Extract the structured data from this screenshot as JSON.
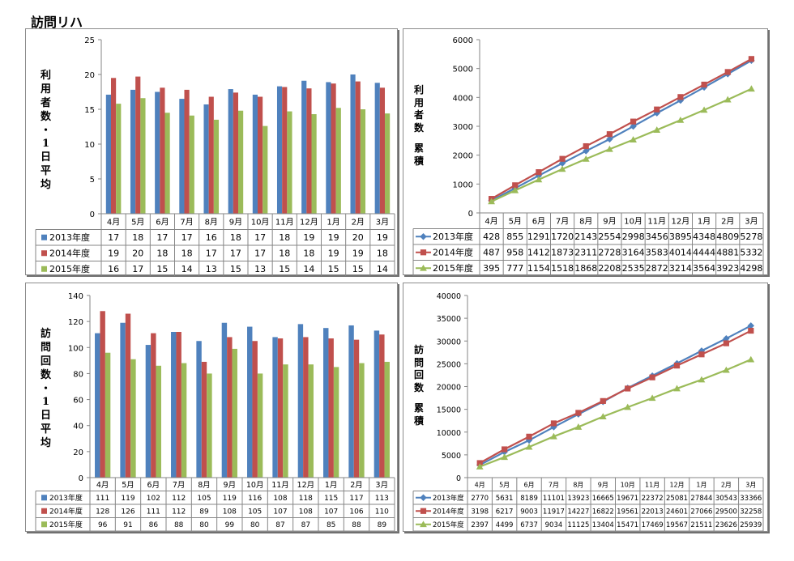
{
  "page_title": "訪問リハ",
  "colors": {
    "2013年度": "#4f81bd",
    "2014年度": "#c0504d",
    "2015年度": "#9bbb59"
  },
  "chart_data": [
    {
      "id": "users-daily",
      "type": "bar",
      "ylabel": "利用者数・1日平均",
      "ylim": [
        0,
        25
      ],
      "yticks": [
        0,
        5,
        10,
        15,
        20,
        25
      ],
      "grid": false,
      "legend": "data-table",
      "categories": [
        "4月",
        "5月",
        "6月",
        "7月",
        "8月",
        "9月",
        "10月",
        "11月",
        "12月",
        "1月",
        "2月",
        "3月"
      ],
      "series": [
        {
          "name": "2013年度",
          "values": [
            17.1,
            17.8,
            17.5,
            16.5,
            15.7,
            17.9,
            17.1,
            18.3,
            19.1,
            18.9,
            20.0,
            18.8
          ],
          "labels": [
            "17",
            "18",
            "17",
            "17",
            "16",
            "18",
            "17",
            "18",
            "19",
            "19",
            "20",
            "19"
          ]
        },
        {
          "name": "2014年度",
          "values": [
            19.5,
            19.7,
            18.1,
            17.8,
            16.8,
            17.4,
            16.8,
            18.2,
            18.0,
            18.7,
            19.0,
            18.1
          ],
          "labels": [
            "19",
            "20",
            "18",
            "18",
            "17",
            "17",
            "17",
            "18",
            "18",
            "19",
            "19",
            "18"
          ]
        },
        {
          "name": "2015年度",
          "values": [
            15.8,
            16.6,
            14.5,
            14.1,
            13.5,
            14.8,
            12.6,
            14.7,
            14.3,
            15.2,
            15.0,
            14.4
          ],
          "labels": [
            "16",
            "17",
            "15",
            "14",
            "13",
            "15",
            "13",
            "15",
            "14",
            "15",
            "15",
            "14"
          ]
        }
      ]
    },
    {
      "id": "users-cumulative",
      "type": "line",
      "ylabel": "利用者数 累積",
      "ylim": [
        0,
        6000
      ],
      "yticks": [
        0,
        1000,
        2000,
        3000,
        4000,
        5000,
        6000
      ],
      "grid": false,
      "legend": "data-table",
      "categories": [
        "4月",
        "5月",
        "6月",
        "7月",
        "8月",
        "9月",
        "10月",
        "11月",
        "12月",
        "1月",
        "2月",
        "3月"
      ],
      "series": [
        {
          "name": "2013年度",
          "values": [
            428,
            855,
            1291,
            1720,
            2143,
            2554,
            2998,
            3456,
            3895,
            4348,
            4809,
            5278
          ]
        },
        {
          "name": "2014年度",
          "values": [
            487,
            958,
            1412,
            1873,
            2311,
            2728,
            3164,
            3583,
            4014,
            4444,
            4881,
            5332
          ]
        },
        {
          "name": "2015年度",
          "values": [
            395,
            777,
            1154,
            1518,
            1868,
            2208,
            2535,
            2872,
            3214,
            3564,
            3923,
            4298
          ]
        }
      ]
    },
    {
      "id": "visits-daily",
      "type": "bar",
      "ylabel": "訪問回数・1日平均",
      "ylim": [
        0,
        140
      ],
      "yticks": [
        0,
        20,
        40,
        60,
        80,
        100,
        120,
        140
      ],
      "grid": false,
      "legend": "data-table",
      "categories": [
        "4月",
        "5月",
        "6月",
        "7月",
        "8月",
        "9月",
        "10月",
        "11月",
        "12月",
        "1月",
        "2月",
        "3月"
      ],
      "series": [
        {
          "name": "2013年度",
          "values": [
            111,
            119,
            102,
            112,
            105,
            119,
            116,
            108,
            118,
            115,
            117,
            113
          ]
        },
        {
          "name": "2014年度",
          "values": [
            128,
            126,
            111,
            112,
            89,
            108,
            105,
            107,
            108,
            107,
            106,
            110
          ]
        },
        {
          "name": "2015年度",
          "values": [
            96,
            91,
            86,
            88,
            80,
            99,
            80,
            87,
            87,
            85,
            88,
            89
          ]
        }
      ]
    },
    {
      "id": "visits-cumulative",
      "type": "line",
      "ylabel": "訪問回数 累積",
      "ylim": [
        0,
        40000
      ],
      "yticks": [
        0,
        5000,
        10000,
        15000,
        20000,
        25000,
        30000,
        35000,
        40000
      ],
      "grid": false,
      "legend": "data-table",
      "categories": [
        "4月",
        "5月",
        "6月",
        "7月",
        "8月",
        "9月",
        "10月",
        "11月",
        "12月",
        "1月",
        "2月",
        "3月"
      ],
      "series": [
        {
          "name": "2013年度",
          "values": [
            2770,
            5631,
            8189,
            11101,
            13923,
            16665,
            19671,
            22372,
            25081,
            27844,
            30543,
            33366
          ]
        },
        {
          "name": "2014年度",
          "values": [
            3198,
            6217,
            9003,
            11917,
            14227,
            16822,
            19561,
            22013,
            24601,
            27066,
            29500,
            32258
          ]
        },
        {
          "name": "2015年度",
          "values": [
            2397,
            4499,
            6737,
            9034,
            11125,
            13404,
            15471,
            17469,
            19567,
            21511,
            23626,
            25939
          ]
        }
      ]
    }
  ]
}
